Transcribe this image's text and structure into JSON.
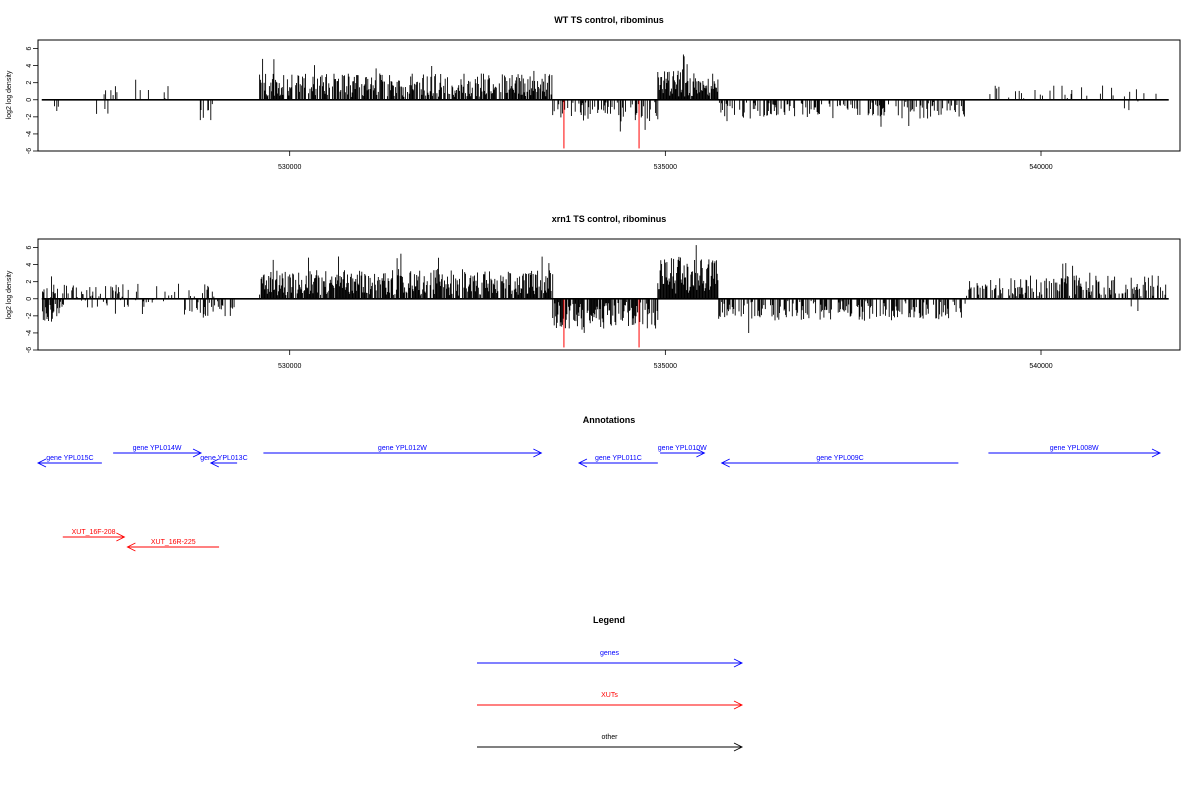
{
  "chart_data": [
    {
      "type": "bar",
      "title": "WT TS control, ribominus",
      "ylabel": "log2 log density",
      "xlim": [
        526650,
        541850
      ],
      "ylim": [
        -6,
        7
      ],
      "xticks": [
        530000,
        535000,
        540000
      ],
      "yticks": [
        -6,
        -4,
        -2,
        0,
        2,
        4,
        6
      ],
      "baseline": {
        "from": 526700,
        "to": 541700
      },
      "highlighted_bars": [
        {
          "x": 533650,
          "value": -5.7,
          "color": "#ff0000"
        },
        {
          "x": 534650,
          "value": -5.7,
          "color": "#ff0000"
        }
      ],
      "segments": [
        {
          "from": 526750,
          "to": 527000,
          "dir": -1,
          "mean": 1.1,
          "density": 0.16
        },
        {
          "from": 527300,
          "to": 527600,
          "dir": -1,
          "mean": 1.2,
          "density": 0.08
        },
        {
          "from": 527500,
          "to": 528700,
          "dir": 1,
          "mean": 1.2,
          "density": 0.14
        },
        {
          "from": 528800,
          "to": 529100,
          "dir": -1,
          "mean": 1.8,
          "density": 0.16
        },
        {
          "from": 529600,
          "to": 533500,
          "dir": 1,
          "mean": 2.2,
          "density": 0.7
        },
        {
          "from": 533500,
          "to": 534900,
          "dir": -1,
          "mean": 1.8,
          "density": 0.45
        },
        {
          "from": 534900,
          "to": 535700,
          "dir": 1,
          "mean": 2.6,
          "density": 0.9
        },
        {
          "from": 535700,
          "to": 539000,
          "dir": -1,
          "mean": 1.6,
          "density": 0.4
        },
        {
          "from": 539300,
          "to": 541600,
          "dir": 1,
          "mean": 1.2,
          "density": 0.16
        },
        {
          "from": 541100,
          "to": 541300,
          "dir": -1,
          "mean": 1.0,
          "density": 0.1
        }
      ]
    },
    {
      "type": "bar",
      "title": "xrn1 TS control, ribominus",
      "ylabel": "log2 log density",
      "xlim": [
        526650,
        541850
      ],
      "ylim": [
        -6,
        7
      ],
      "xticks": [
        530000,
        535000,
        540000
      ],
      "yticks": [
        -6,
        -4,
        -2,
        0,
        2,
        4,
        6
      ],
      "baseline": {
        "from": 526700,
        "to": 541700
      },
      "highlighted_bars": [
        {
          "x": 533650,
          "value": -5.7,
          "color": "#ff0000"
        },
        {
          "x": 534650,
          "value": -5.7,
          "color": "#ff0000"
        }
      ],
      "segments": [
        {
          "from": 526700,
          "to": 527000,
          "dir": -1,
          "mean": 2.0,
          "density": 0.7
        },
        {
          "from": 526700,
          "to": 529000,
          "dir": 1,
          "mean": 1.3,
          "density": 0.3
        },
        {
          "from": 527000,
          "to": 528500,
          "dir": -1,
          "mean": 0.8,
          "density": 0.12
        },
        {
          "from": 528600,
          "to": 529300,
          "dir": -1,
          "mean": 1.6,
          "density": 0.45
        },
        {
          "from": 529600,
          "to": 533500,
          "dir": 1,
          "mean": 2.4,
          "density": 0.85
        },
        {
          "from": 533500,
          "to": 534900,
          "dir": -1,
          "mean": 2.5,
          "density": 0.75
        },
        {
          "from": 534900,
          "to": 535700,
          "dir": 1,
          "mean": 3.5,
          "density": 1.0
        },
        {
          "from": 535700,
          "to": 539000,
          "dir": -1,
          "mean": 1.8,
          "density": 0.5
        },
        {
          "from": 539000,
          "to": 541700,
          "dir": 1,
          "mean": 2.0,
          "density": 0.55
        },
        {
          "from": 541100,
          "to": 541300,
          "dir": -1,
          "mean": 2.2,
          "density": 0.06
        }
      ]
    }
  ],
  "annotations": {
    "title": "Annotations",
    "genes": [
      {
        "label": "gene YPL015C",
        "row": 1,
        "dir": "left",
        "from": 526650,
        "to": 527500
      },
      {
        "label": "gene YPL014W",
        "row": 0,
        "dir": "right",
        "from": 527650,
        "to": 528820
      },
      {
        "label": "gene YPL013C",
        "row": 1,
        "dir": "left",
        "from": 528950,
        "to": 529300
      },
      {
        "label": "gene YPL012W",
        "row": 0,
        "dir": "right",
        "from": 529650,
        "to": 533350
      },
      {
        "label": "gene YPL011C",
        "row": 1,
        "dir": "left",
        "from": 533850,
        "to": 534900
      },
      {
        "label": "gene YPL010W",
        "row": 0,
        "dir": "right",
        "from": 534930,
        "to": 535520
      },
      {
        "label": "gene YPL009C",
        "row": 1,
        "dir": "left",
        "from": 535750,
        "to": 538900
      },
      {
        "label": "gene YPL008W",
        "row": 0,
        "dir": "right",
        "from": 539300,
        "to": 541950
      }
    ],
    "xuts": [
      {
        "label": "XUT_16F-208",
        "row": 0,
        "dir": "right",
        "from": 526980,
        "to": 527800
      },
      {
        "label": "XUT_16R-225",
        "row": 1,
        "dir": "left",
        "from": 527840,
        "to": 529060
      }
    ]
  },
  "legend": {
    "title": "Legend",
    "items": [
      {
        "label": "genes",
        "color": "#0000ff"
      },
      {
        "label": "XUTs",
        "color": "#ff0000"
      },
      {
        "label": "other",
        "color": "#000000"
      }
    ]
  }
}
